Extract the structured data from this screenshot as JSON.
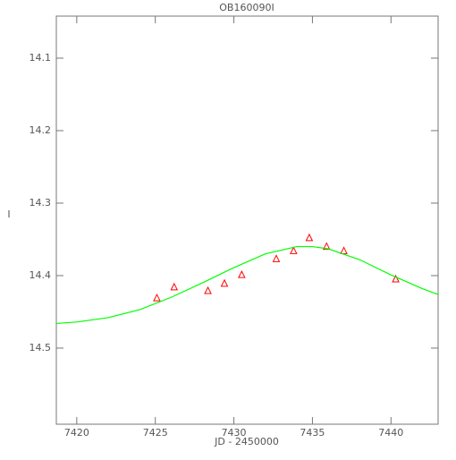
{
  "chart_data": {
    "type": "scatter",
    "title": "OB160090I",
    "x_label": "JD - 2450000",
    "y_label": "I",
    "xlim": [
      7418.7,
      7443
    ],
    "ylim": [
      14.605,
      14.042
    ],
    "xticks": [
      7420,
      7425,
      7430,
      7435,
      7440
    ],
    "yticks": [
      14.1,
      14.2,
      14.3,
      14.4,
      14.5
    ],
    "series": [
      {
        "marker": "triangle",
        "color": "#ff0000",
        "x": [
          7425.1,
          7426.2,
          7428.35,
          7429.4,
          7430.5,
          7432.7,
          7433.8,
          7434.8,
          7435.9,
          7437.0,
          7440.3
        ],
        "values": [
          14.431,
          14.416,
          14.421,
          14.411,
          14.399,
          14.377,
          14.366,
          14.348,
          14.36,
          14.366,
          14.405
        ]
      },
      {
        "marker": "line",
        "color": "#00ff00",
        "x": [
          7418.7,
          7420,
          7422,
          7424,
          7426,
          7428,
          7430,
          7432,
          7434,
          7435,
          7436,
          7438,
          7440,
          7442,
          7443
        ],
        "values": [
          14.466,
          14.464,
          14.458,
          14.447,
          14.43,
          14.41,
          14.389,
          14.37,
          14.36,
          14.36,
          14.363,
          14.378,
          14.399,
          14.418,
          14.426
        ]
      }
    ]
  }
}
